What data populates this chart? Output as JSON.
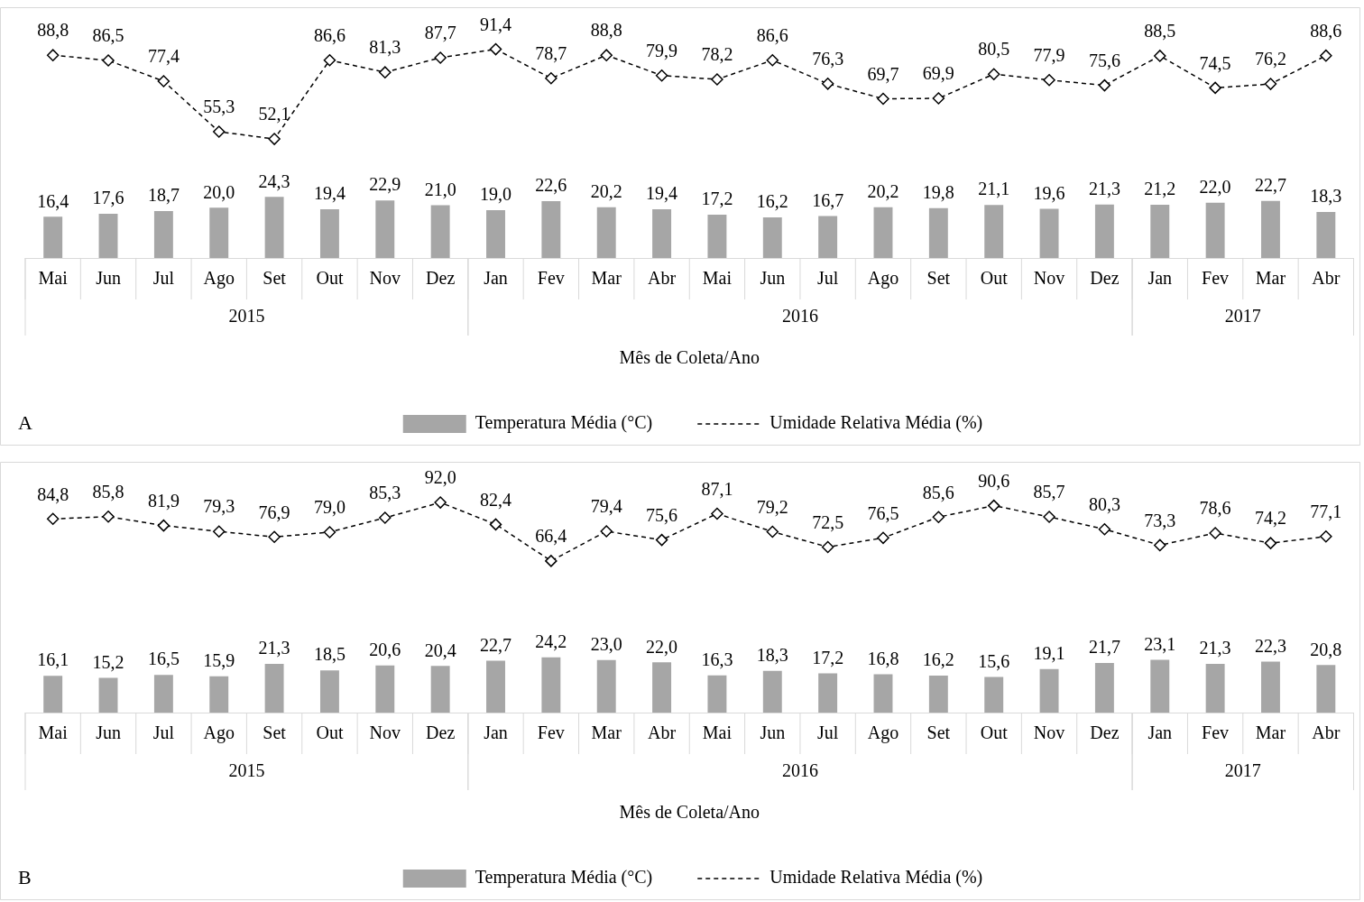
{
  "chart_data": [
    {
      "type": "bar",
      "xlabel": "Mês de Coleta/Ano",
      "categories": [
        "Mai",
        "Jun",
        "Jul",
        "Ago",
        "Set",
        "Out",
        "Nov",
        "Dez",
        "Jan",
        "Fev",
        "Mar",
        "Abr",
        "Mai",
        "Jun",
        "Jul",
        "Ago",
        "Set",
        "Out",
        "Nov",
        "Dez",
        "Jan",
        "Fev",
        "Mar",
        "Abr"
      ],
      "ylim": [
        0,
        100
      ],
      "y2lim": [
        0,
        110
      ],
      "tick_labels": "x",
      "legend": "bottom",
      "marker": "diamond",
      "line_style": "dashed",
      "grid": false,
      "series": [
        {
          "name": "Temperatura Média (°C)",
          "color": "#a6a6a6",
          "values": [
            16.4,
            17.6,
            18.7,
            20.0,
            24.3,
            19.4,
            22.9,
            21.0,
            19.0,
            22.6,
            20.2,
            19.4,
            17.2,
            16.2,
            16.7,
            20.2,
            19.8,
            21.1,
            19.6,
            21.3,
            21.2,
            22.0,
            22.7,
            18.3
          ],
          "value_labels": [
            "16,4",
            "17,6",
            "18,7",
            "20,0",
            "24,3",
            "19,4",
            "22,9",
            "21,0",
            "19,0",
            "22,6",
            "20,2",
            "19,4",
            "17,2",
            "16,2",
            "16,7",
            "20,2",
            "19,8",
            "21,1",
            "19,6",
            "21,3",
            "21,2",
            "22,0",
            "22,7",
            "18,3"
          ]
        },
        {
          "name": "Umidade Relativa Média (%)",
          "type": "line",
          "axis": "y2",
          "color": "#000000",
          "values": [
            88.8,
            86.5,
            77.4,
            55.3,
            52.1,
            86.6,
            81.3,
            87.7,
            91.4,
            78.7,
            88.8,
            79.9,
            78.2,
            86.6,
            76.3,
            69.7,
            69.9,
            80.5,
            77.9,
            75.6,
            88.5,
            74.5,
            76.2,
            88.6
          ],
          "value_labels": [
            "88,8",
            "86,5",
            "77,4",
            "55,3",
            "52,1",
            "86,6",
            "81,3",
            "87,7",
            "91,4",
            "78,7",
            "88,8",
            "79,9",
            "78,2",
            "86,6",
            "76,3",
            "69,7",
            "69,9",
            "80,5",
            "77,9",
            "75,6",
            "88,5",
            "74,5",
            "76,2",
            "88,6"
          ]
        }
      ],
      "annotations": [
        "2015",
        "2016",
        "2017",
        "A"
      ]
    },
    {
      "type": "bar",
      "xlabel": "Mês de Coleta/Ano",
      "categories": [
        "Mai",
        "Jun",
        "Jul",
        "Ago",
        "Set",
        "Out",
        "Nov",
        "Dez",
        "Jan",
        "Fev",
        "Mar",
        "Abr",
        "Mai",
        "Jun",
        "Jul",
        "Ago",
        "Set",
        "Out",
        "Nov",
        "Dez",
        "Jan",
        "Fev",
        "Mar",
        "Abr"
      ],
      "ylim": [
        0,
        110
      ],
      "y2lim": [
        0,
        110
      ],
      "tick_labels": "x",
      "legend": "bottom",
      "marker": "diamond",
      "line_style": "dashed",
      "grid": false,
      "series": [
        {
          "name": "Temperatura Média (°C)",
          "color": "#a6a6a6",
          "values": [
            16.1,
            15.2,
            16.5,
            15.9,
            21.3,
            18.5,
            20.6,
            20.4,
            22.7,
            24.2,
            23.0,
            22.0,
            16.3,
            18.3,
            17.2,
            16.8,
            16.2,
            15.6,
            19.1,
            21.7,
            23.1,
            21.3,
            22.3,
            20.8
          ],
          "value_labels": [
            "16,1",
            "15,2",
            "16,5",
            "15,9",
            "21,3",
            "18,5",
            "20,6",
            "20,4",
            "22,7",
            "24,2",
            "23,0",
            "22,0",
            "16,3",
            "18,3",
            "17,2",
            "16,8",
            "16,2",
            "15,6",
            "19,1",
            "21,7",
            "23,1",
            "21,3",
            "22,3",
            "20,8"
          ]
        },
        {
          "name": "Umidade Relativa Média (%)",
          "type": "line",
          "axis": "y2",
          "color": "#000000",
          "values": [
            84.8,
            85.8,
            81.9,
            79.3,
            76.9,
            79.0,
            85.3,
            92.0,
            82.4,
            66.4,
            79.4,
            75.6,
            87.1,
            79.2,
            72.5,
            76.5,
            85.6,
            90.6,
            85.7,
            80.3,
            73.3,
            78.6,
            74.2,
            77.1
          ],
          "value_labels": [
            "84,8",
            "85,8",
            "81,9",
            "79,3",
            "76,9",
            "79,0",
            "85,3",
            "92,0",
            "82,4",
            "66,4",
            "79,4",
            "75,6",
            "87,1",
            "79,2",
            "72,5",
            "76,5",
            "85,6",
            "90,6",
            "85,7",
            "80,3",
            "73,3",
            "78,6",
            "74,2",
            "77,1"
          ]
        }
      ],
      "annotations": [
        "2015",
        "2016",
        "2017",
        "B"
      ]
    }
  ]
}
